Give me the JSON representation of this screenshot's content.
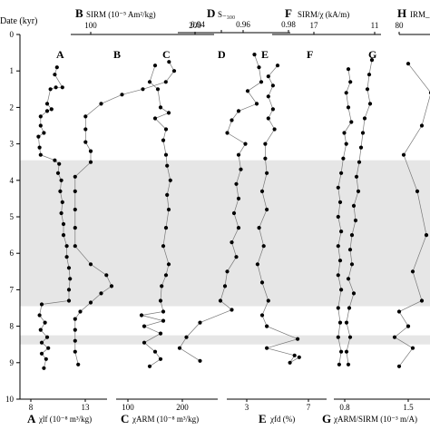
{
  "figure": {
    "depth_axis": {
      "label": "Date (kyr)",
      "range": [
        0,
        10
      ],
      "ticks": [
        "0",
        "1",
        "2",
        "3",
        "4",
        "5",
        "6",
        "7",
        "8",
        "9",
        "10"
      ],
      "shaded_bands": [
        [
          3.45,
          7.45
        ],
        [
          8.25,
          8.5
        ]
      ],
      "band_color": "#e6e6e6"
    },
    "top_axes": [
      {
        "id": "B",
        "label": "SIRM (10⁻⁵ Am²/kg)",
        "ticks": [
          "100",
          "200"
        ]
      },
      {
        "id": "D",
        "label": "S₋₃₀₀",
        "ticks": [
          "0.94",
          "0.96",
          "0.98"
        ]
      },
      {
        "id": "F",
        "label": "SIRM/χ (kA/m)",
        "ticks": [
          "17",
          "11"
        ]
      },
      {
        "id": "H",
        "label": "IRM_",
        "ticks": [
          "80"
        ]
      }
    ],
    "bottom_axes": [
      {
        "id": "A",
        "label": "χlf (10⁻⁸ m³/kg)",
        "ticks": [
          "8",
          "13"
        ]
      },
      {
        "id": "C",
        "label": "χARM (10⁻⁸ m³/kg)",
        "ticks": [
          "100",
          "200"
        ]
      },
      {
        "id": "E",
        "label": "χfd (%)",
        "ticks": [
          "3",
          "7"
        ]
      },
      {
        "id": "G",
        "label": "χARM/SIRM (10⁻³ m/A)",
        "ticks": [
          "0.8",
          "1.5"
        ]
      }
    ],
    "curve_letters": [
      "A",
      "B",
      "C",
      "D",
      "E",
      "F",
      "G"
    ]
  },
  "chart_data": {
    "type": "line",
    "y_axis": "Date (kyr)",
    "ylim": [
      0,
      10
    ],
    "grid": false,
    "series": [
      {
        "name": "A",
        "values": [
          [
            10.4,
            0.9
          ],
          [
            10.2,
            1.1
          ],
          [
            10.9,
            1.45
          ],
          [
            10.3,
            1.45
          ],
          [
            9.8,
            1.5
          ],
          [
            9.5,
            1.9
          ],
          [
            9.9,
            2.05
          ],
          [
            9.5,
            2.1
          ],
          [
            8.9,
            2.25
          ],
          [
            8.9,
            2.5
          ],
          [
            9.2,
            2.7
          ],
          [
            8.7,
            2.8
          ],
          [
            8.8,
            3.1
          ],
          [
            8.9,
            3.3
          ],
          [
            10.2,
            3.45
          ],
          [
            10.6,
            3.55
          ],
          [
            10.5,
            3.8
          ],
          [
            10.8,
            4.0
          ],
          [
            10.7,
            4.3
          ],
          [
            10.9,
            4.6
          ],
          [
            10.8,
            4.9
          ],
          [
            11.0,
            5.2
          ],
          [
            11.0,
            5.5
          ],
          [
            11.3,
            5.8
          ],
          [
            11.3,
            6.1
          ],
          [
            11.5,
            6.4
          ],
          [
            11.6,
            6.7
          ],
          [
            11.5,
            7.0
          ],
          [
            11.5,
            7.3
          ],
          [
            9.0,
            7.4
          ],
          [
            8.8,
            7.7
          ],
          [
            9.3,
            7.9
          ],
          [
            8.9,
            8.1
          ],
          [
            9.5,
            8.3
          ],
          [
            9.0,
            8.45
          ],
          [
            9.6,
            8.6
          ],
          [
            9.0,
            8.75
          ],
          [
            9.4,
            8.9
          ],
          [
            9.2,
            9.15
          ]
        ]
      },
      {
        "name": "B",
        "values": [
          [
            175,
            0.75
          ],
          [
            180,
            1.0
          ],
          [
            172,
            1.3
          ],
          [
            150,
            1.5
          ],
          [
            130,
            1.65
          ],
          [
            110,
            1.9
          ],
          [
            95,
            2.25
          ],
          [
            95,
            2.6
          ],
          [
            95,
            2.95
          ],
          [
            100,
            3.2
          ],
          [
            100,
            3.5
          ],
          [
            85,
            3.9
          ],
          [
            85,
            4.3
          ],
          [
            85,
            4.8
          ],
          [
            85,
            5.3
          ],
          [
            85,
            5.8
          ],
          [
            100,
            6.3
          ],
          [
            115,
            6.6
          ],
          [
            120,
            6.9
          ],
          [
            110,
            7.1
          ],
          [
            100,
            7.35
          ],
          [
            90,
            7.6
          ],
          [
            85,
            7.8
          ],
          [
            85,
            8.1
          ],
          [
            85,
            8.4
          ],
          [
            85,
            8.7
          ],
          [
            88,
            9.05
          ]
        ]
      },
      {
        "name": "C",
        "values": [
          [
            150,
            0.85
          ],
          [
            140,
            1.3
          ],
          [
            155,
            1.5
          ],
          [
            160,
            2.0
          ],
          [
            175,
            2.15
          ],
          [
            150,
            2.3
          ],
          [
            170,
            2.6
          ],
          [
            165,
            2.9
          ],
          [
            170,
            3.3
          ],
          [
            172,
            3.6
          ],
          [
            178,
            4.0
          ],
          [
            172,
            4.4
          ],
          [
            175,
            4.8
          ],
          [
            170,
            5.3
          ],
          [
            165,
            5.8
          ],
          [
            175,
            6.3
          ],
          [
            170,
            6.6
          ],
          [
            162,
            6.9
          ],
          [
            160,
            7.3
          ],
          [
            165,
            7.6
          ],
          [
            125,
            7.7
          ],
          [
            165,
            7.85
          ],
          [
            130,
            8.0
          ],
          [
            160,
            8.2
          ],
          [
            130,
            8.45
          ],
          [
            150,
            8.7
          ],
          [
            160,
            8.9
          ],
          [
            140,
            9.1
          ]
        ]
      },
      {
        "name": "D",
        "values": [
          [
            0.965,
            0.55
          ],
          [
            0.967,
            0.9
          ],
          [
            0.968,
            1.3
          ],
          [
            0.962,
            1.55
          ],
          [
            0.966,
            1.9
          ],
          [
            0.958,
            2.1
          ],
          [
            0.955,
            2.35
          ],
          [
            0.953,
            2.7
          ],
          [
            0.961,
            3.0
          ],
          [
            0.958,
            3.3
          ],
          [
            0.959,
            3.7
          ],
          [
            0.957,
            4.1
          ],
          [
            0.958,
            4.5
          ],
          [
            0.956,
            4.9
          ],
          [
            0.958,
            5.3
          ],
          [
            0.955,
            5.7
          ],
          [
            0.957,
            6.1
          ],
          [
            0.953,
            6.5
          ],
          [
            0.952,
            6.9
          ],
          [
            0.95,
            7.3
          ],
          [
            0.955,
            7.55
          ],
          [
            0.941,
            7.9
          ],
          [
            0.935,
            8.3
          ],
          [
            0.932,
            8.6
          ],
          [
            0.941,
            8.95
          ]
        ]
      },
      {
        "name": "E",
        "values": [
          [
            5.0,
            0.85
          ],
          [
            4.4,
            1.15
          ],
          [
            4.7,
            1.4
          ],
          [
            4.4,
            1.7
          ],
          [
            4.7,
            2.05
          ],
          [
            4.4,
            2.3
          ],
          [
            4.8,
            2.6
          ],
          [
            4.2,
            3.0
          ],
          [
            4.2,
            3.4
          ],
          [
            4.3,
            3.8
          ],
          [
            4.0,
            4.3
          ],
          [
            4.3,
            4.8
          ],
          [
            3.8,
            5.3
          ],
          [
            4.1,
            5.8
          ],
          [
            3.7,
            6.3
          ],
          [
            4.0,
            6.8
          ],
          [
            4.4,
            7.3
          ],
          [
            4.0,
            7.7
          ],
          [
            4.3,
            8.0
          ],
          [
            6.3,
            8.35
          ],
          [
            4.3,
            8.6
          ],
          [
            6.1,
            8.8
          ],
          [
            5.8,
            9.0
          ],
          [
            6.4,
            8.85
          ]
        ]
      },
      {
        "name": "F",
        "values": [
          [
            13.6,
            0.95
          ],
          [
            13.4,
            1.3
          ],
          [
            13.8,
            1.6
          ],
          [
            13.6,
            2.0
          ],
          [
            13.3,
            2.4
          ],
          [
            14.0,
            2.7
          ],
          [
            13.8,
            3.0
          ],
          [
            14.1,
            3.4
          ],
          [
            14.3,
            3.8
          ],
          [
            14.6,
            4.2
          ],
          [
            14.4,
            4.6
          ],
          [
            14.6,
            5.0
          ],
          [
            14.3,
            5.4
          ],
          [
            14.6,
            5.8
          ],
          [
            14.4,
            6.2
          ],
          [
            14.6,
            6.6
          ],
          [
            14.3,
            7.0
          ],
          [
            14.6,
            7.5
          ],
          [
            14.4,
            7.9
          ],
          [
            14.6,
            8.3
          ],
          [
            14.3,
            8.7
          ],
          [
            14.5,
            9.05
          ]
        ]
      },
      {
        "name": "G",
        "values": [
          [
            1.1,
            0.7
          ],
          [
            1.07,
            1.1
          ],
          [
            1.05,
            1.5
          ],
          [
            1.08,
            1.9
          ],
          [
            1.02,
            2.3
          ],
          [
            1.0,
            2.7
          ],
          [
            0.98,
            3.1
          ],
          [
            0.96,
            3.5
          ],
          [
            0.93,
            3.9
          ],
          [
            0.95,
            4.3
          ],
          [
            0.9,
            4.7
          ],
          [
            0.92,
            5.1
          ],
          [
            0.88,
            5.5
          ],
          [
            0.86,
            5.9
          ],
          [
            0.88,
            6.3
          ],
          [
            0.84,
            6.7
          ],
          [
            0.9,
            7.1
          ],
          [
            0.85,
            7.5
          ],
          [
            0.82,
            7.9
          ],
          [
            0.86,
            8.3
          ],
          [
            0.82,
            8.7
          ],
          [
            0.84,
            9.05
          ]
        ]
      },
      {
        "name": "H",
        "values": [
          [
            1.5,
            0.8
          ],
          [
            1.75,
            1.6
          ],
          [
            1.65,
            2.5
          ],
          [
            1.45,
            3.3
          ],
          [
            1.6,
            4.3
          ],
          [
            1.7,
            5.5
          ],
          [
            1.55,
            6.5
          ],
          [
            1.65,
            7.3
          ],
          [
            1.4,
            7.6
          ],
          [
            1.5,
            8.0
          ],
          [
            1.35,
            8.3
          ],
          [
            1.55,
            8.6
          ],
          [
            1.4,
            9.1
          ]
        ]
      }
    ]
  }
}
